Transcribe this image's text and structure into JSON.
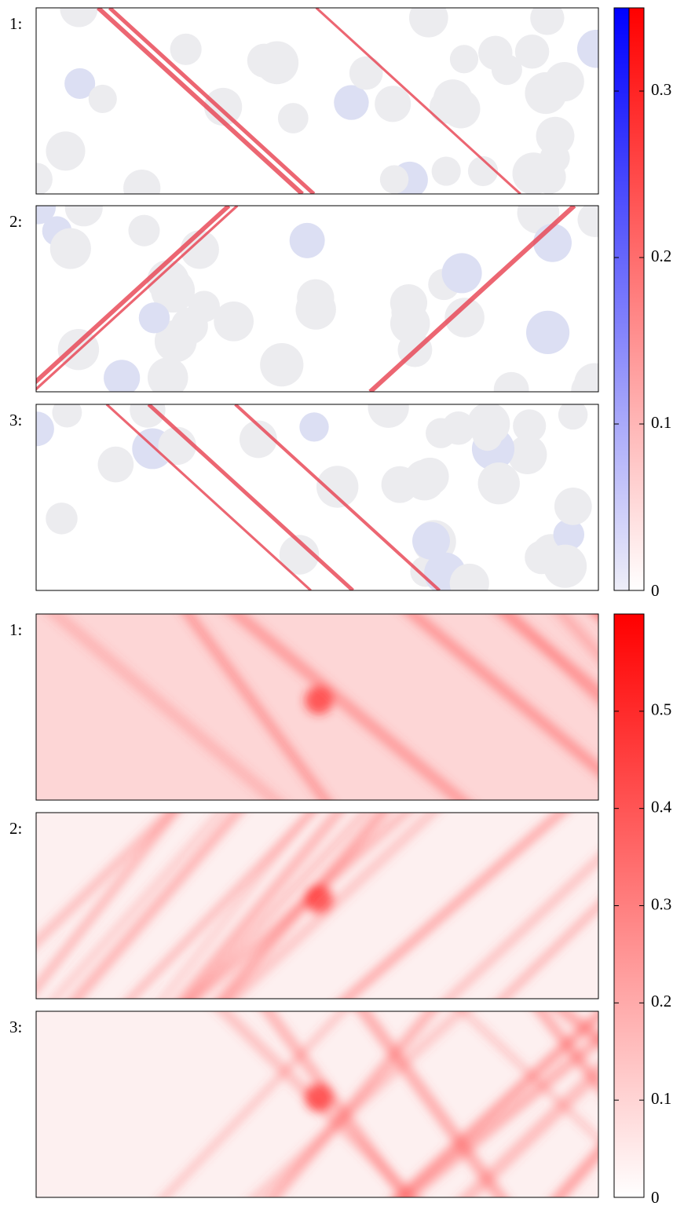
{
  "figures": [
    {
      "panels": [
        "1:",
        "2:",
        "3:"
      ],
      "colorbar": {
        "lim": [
          0,
          0.35
        ],
        "ticks": [
          0,
          0.1,
          0.2,
          0.3
        ],
        "colors": [
          "#0000ff",
          "#ff0000"
        ]
      }
    },
    {
      "panels": [
        "1:",
        "2:",
        "3:"
      ],
      "colorbar": {
        "lim": [
          0,
          0.6
        ],
        "ticks": [
          0,
          0.1,
          0.2,
          0.3,
          0.4,
          0.5
        ],
        "colors": [
          "#ff0000"
        ]
      }
    }
  ]
}
